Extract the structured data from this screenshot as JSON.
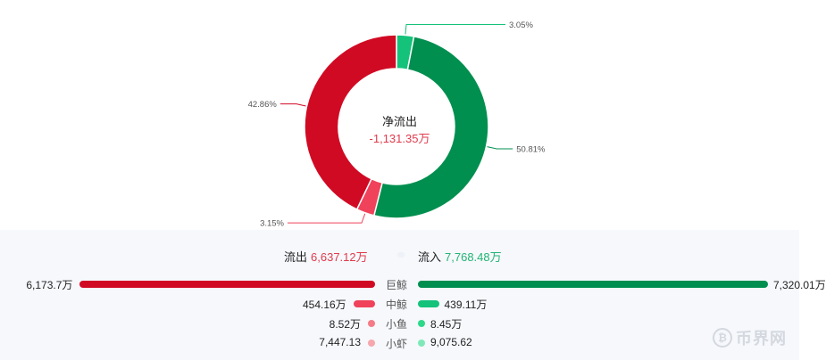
{
  "chart_data": [
    {
      "type": "pie",
      "variant": "donut",
      "center": {
        "title": "净流出",
        "value": "-1,131.35万"
      },
      "slices": [
        {
          "label": "3.05%",
          "value": 3.05,
          "color": "#14c27a"
        },
        {
          "label": "50.81%",
          "value": 50.81,
          "color": "#008f4f"
        },
        {
          "label": "3.15%",
          "value": 3.15,
          "color": "#f0425a"
        },
        {
          "label": "42.86%",
          "value": 42.86,
          "color": "#d10a24"
        }
      ]
    },
    {
      "type": "bar",
      "orientation": "diverging-horizontal",
      "totals": {
        "outflow_label": "流出",
        "outflow_value": "6,637.12万",
        "inflow_label": "流入",
        "inflow_value": "7,768.48万"
      },
      "categories": [
        "巨鲸",
        "中鲸",
        "小鱼",
        "小虾"
      ],
      "series": [
        {
          "name": "流出",
          "values": [
            61737000,
            4541600,
            85200,
            7447.13
          ],
          "labels": [
            "6,173.7万",
            "454.16万",
            "8.52万",
            "7,447.13"
          ],
          "colors": [
            "#d10a24",
            "#f0425a",
            "#f47b86",
            "#f6a7ad"
          ]
        },
        {
          "name": "流入",
          "values": [
            73200100,
            4391100,
            84500,
            9075.62
          ],
          "labels": [
            "7,320.01万",
            "439.11万",
            "8.45万",
            "9,075.62"
          ],
          "colors": [
            "#008f4f",
            "#14c27a",
            "#2ed98a",
            "#7fe8b8"
          ]
        }
      ]
    }
  ],
  "watermark": {
    "text": "币界网",
    "icon": "bitcoin-logo-icon"
  }
}
